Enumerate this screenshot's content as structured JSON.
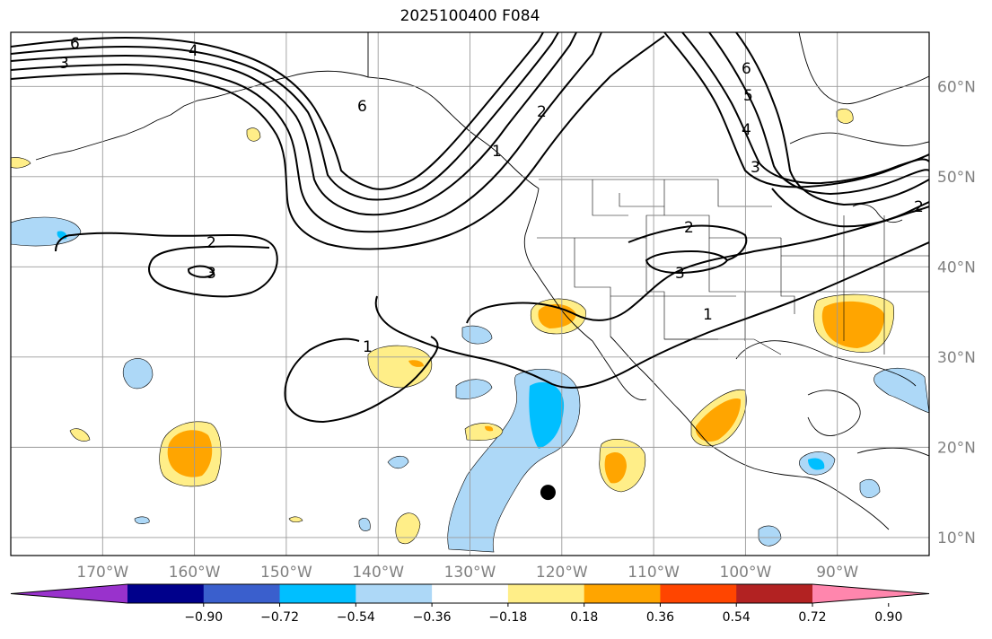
{
  "title": "2025100400 F084",
  "colors": {
    "land_line": "#000000",
    "grid": "#9a9a9a",
    "contour": "#000000",
    "light_yellow": "#ffee88",
    "orange": "#ffa500",
    "light_blue": "#add8f7",
    "deep_sky": "#00bfff",
    "marker": "#000000"
  },
  "lat_labels": [
    "60°N",
    "50°N",
    "40°N",
    "30°N",
    "20°N",
    "10°N"
  ],
  "lon_labels": [
    "170°W",
    "160°W",
    "150°W",
    "140°W",
    "130°W",
    "120°W",
    "110°W",
    "100°W",
    "90°W"
  ],
  "contour_labels": [
    "6",
    "4",
    "3",
    "2",
    "6",
    "2",
    "3",
    "2",
    "1",
    "6",
    "5",
    "4",
    "3",
    "2",
    "3",
    "1",
    "1"
  ],
  "colorbar": {
    "colors": [
      "#9932cc",
      "#00008b",
      "#3a5fcd",
      "#00bfff",
      "#add8f7",
      "#ffffff",
      "#ffee88",
      "#ffa500",
      "#ff4500",
      "#b22222",
      "#ff86ad"
    ],
    "tick_labels": [
      "−0.90",
      "−0.72",
      "−0.54",
      "−0.36",
      "−0.18",
      "0.18",
      "0.36",
      "0.54",
      "0.72",
      "0.90"
    ]
  },
  "map_extent": {
    "lon_min": -180,
    "lon_max": -80,
    "lat_min": 8,
    "lat_max": 66
  },
  "marker": {
    "lon": -121.5,
    "lat": 15
  }
}
